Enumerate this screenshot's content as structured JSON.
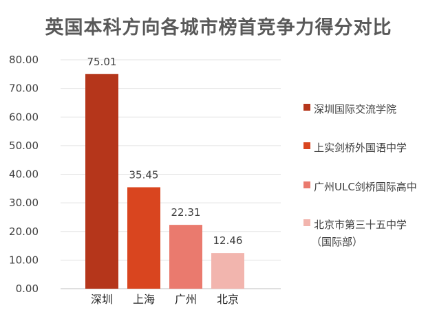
{
  "chart_data": {
    "type": "bar",
    "title": "英国本科方向各城市榜首竞争力得分对比",
    "categories": [
      "深圳",
      "上海",
      "广州",
      "北京"
    ],
    "values": [
      75.01,
      35.45,
      22.31,
      12.46
    ],
    "value_labels": [
      "75.01",
      "35.45",
      "22.31",
      "12.46"
    ],
    "series_names": [
      [
        "深圳国际交流学院"
      ],
      [
        "上实剑桥外国语中学"
      ],
      [
        "广州ULC剑桥国际高中"
      ],
      [
        "北京市第三十五中学",
        "（国际部）"
      ]
    ],
    "colors": [
      "#B5361B",
      "#D9451F",
      "#EA7A6E",
      "#F2B5AE"
    ],
    "ylim": [
      0,
      80
    ],
    "yticks": [
      "0.00",
      "10.00",
      "20.00",
      "30.00",
      "40.00",
      "50.00",
      "60.00",
      "70.00",
      "80.00"
    ],
    "grid": true,
    "legend_position": "right"
  }
}
